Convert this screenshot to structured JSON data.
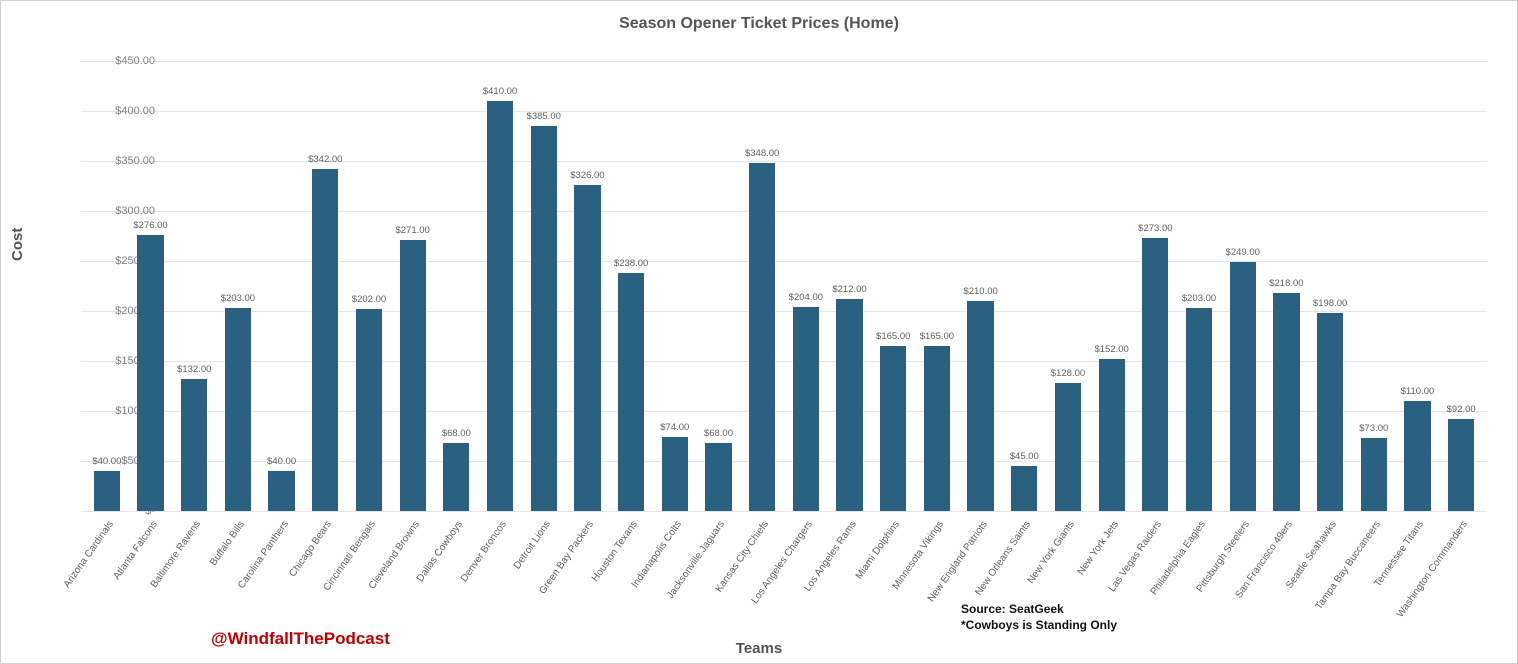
{
  "chart": {
    "type": "bar",
    "title": "Season Opener Ticket Prices (Home)",
    "title_fontsize": 16,
    "title_color": "#555555",
    "x_axis_title": "Teams",
    "y_axis_title": "Cost",
    "axis_title_fontsize": 15,
    "axis_title_color": "#555555",
    "background_color": "#ffffff",
    "grid_color": "#e6e6e6",
    "bar_color": "#2a6180",
    "bar_width": 0.6,
    "label_fontsize": 10,
    "value_label_fontsize": 9.5,
    "value_label_color": "#606060",
    "tick_label_color": "#808080",
    "ylim": [
      0,
      450
    ],
    "ytick_step": 50,
    "yticks": [
      "$-",
      "$50.00",
      "$100.00",
      "$150.00",
      "$200.00",
      "$250.00",
      "$300.00",
      "$350.00",
      "$400.00",
      "$450.00"
    ],
    "currency_prefix": "$",
    "value_decimals": 2,
    "teams": [
      {
        "name": "Arizona Cardinals",
        "value": 40.0,
        "label": "$40.00"
      },
      {
        "name": "Atlanta Falcons",
        "value": 276.0,
        "label": "$276.00"
      },
      {
        "name": "Baltimore Ravens",
        "value": 132.0,
        "label": "$132.00"
      },
      {
        "name": "Buffalo Bills",
        "value": 203.0,
        "label": "$203.00"
      },
      {
        "name": "Carolina Panthers",
        "value": 40.0,
        "label": "$40.00"
      },
      {
        "name": "Chicago Bears",
        "value": 342.0,
        "label": "$342.00"
      },
      {
        "name": "Cincinnati Bengals",
        "value": 202.0,
        "label": "$202.00"
      },
      {
        "name": "Cleveland Browns",
        "value": 271.0,
        "label": "$271.00"
      },
      {
        "name": "Dallas Cowboys",
        "value": 68.0,
        "label": "$68.00"
      },
      {
        "name": "Denver Broncos",
        "value": 410.0,
        "label": "$410.00"
      },
      {
        "name": "Detroit Lions",
        "value": 385.0,
        "label": "$385.00"
      },
      {
        "name": "Green Bay Packers",
        "value": 326.0,
        "label": "$326.00"
      },
      {
        "name": "Houston Texans",
        "value": 238.0,
        "label": "$238.00"
      },
      {
        "name": "Indianapolis Colts",
        "value": 74.0,
        "label": "$74.00"
      },
      {
        "name": "Jacksonville Jaguars",
        "value": 68.0,
        "label": "$68.00"
      },
      {
        "name": "Kansas City Chiefs",
        "value": 348.0,
        "label": "$348.00"
      },
      {
        "name": "Los Angeles Chargers",
        "value": 204.0,
        "label": "$204.00"
      },
      {
        "name": "Los Angeles Rams",
        "value": 212.0,
        "label": "$212.00"
      },
      {
        "name": "Miami Dolphins",
        "value": 165.0,
        "label": "$165.00"
      },
      {
        "name": "Minnesota Vikings",
        "value": 165.0,
        "label": "$165.00"
      },
      {
        "name": "New England Patriots",
        "value": 210.0,
        "label": "$210.00"
      },
      {
        "name": "New Orleans Saints",
        "value": 45.0,
        "label": "$45.00"
      },
      {
        "name": "New York Giants",
        "value": 128.0,
        "label": "$128.00"
      },
      {
        "name": "New York Jets",
        "value": 152.0,
        "label": "$152.00"
      },
      {
        "name": "Las Vegas Raiders",
        "value": 273.0,
        "label": "$273.00"
      },
      {
        "name": "Philadelphia Eagles",
        "value": 203.0,
        "label": "$203.00"
      },
      {
        "name": "Pittsburgh Steelers",
        "value": 249.0,
        "label": "$249.00"
      },
      {
        "name": "San Francisco 49ers",
        "value": 218.0,
        "label": "$218.00"
      },
      {
        "name": "Seattle Seahawks",
        "value": 198.0,
        "label": "$198.00"
      },
      {
        "name": "Tampa Bay Buccaneers",
        "value": 73.0,
        "label": "$73.00"
      },
      {
        "name": "Tennessee Titans",
        "value": 110.0,
        "label": "$110.00"
      },
      {
        "name": "Washington Commanders",
        "value": 92.0,
        "label": "$92.00"
      }
    ]
  },
  "attribution": {
    "text": "@WindfallThePodcast",
    "color": "#c00000",
    "fontsize": 17
  },
  "source_note": {
    "line1": "Source: SeatGeek",
    "line2": "*Cowboys is Standing Only",
    "color": "#111111",
    "fontsize": 12
  }
}
